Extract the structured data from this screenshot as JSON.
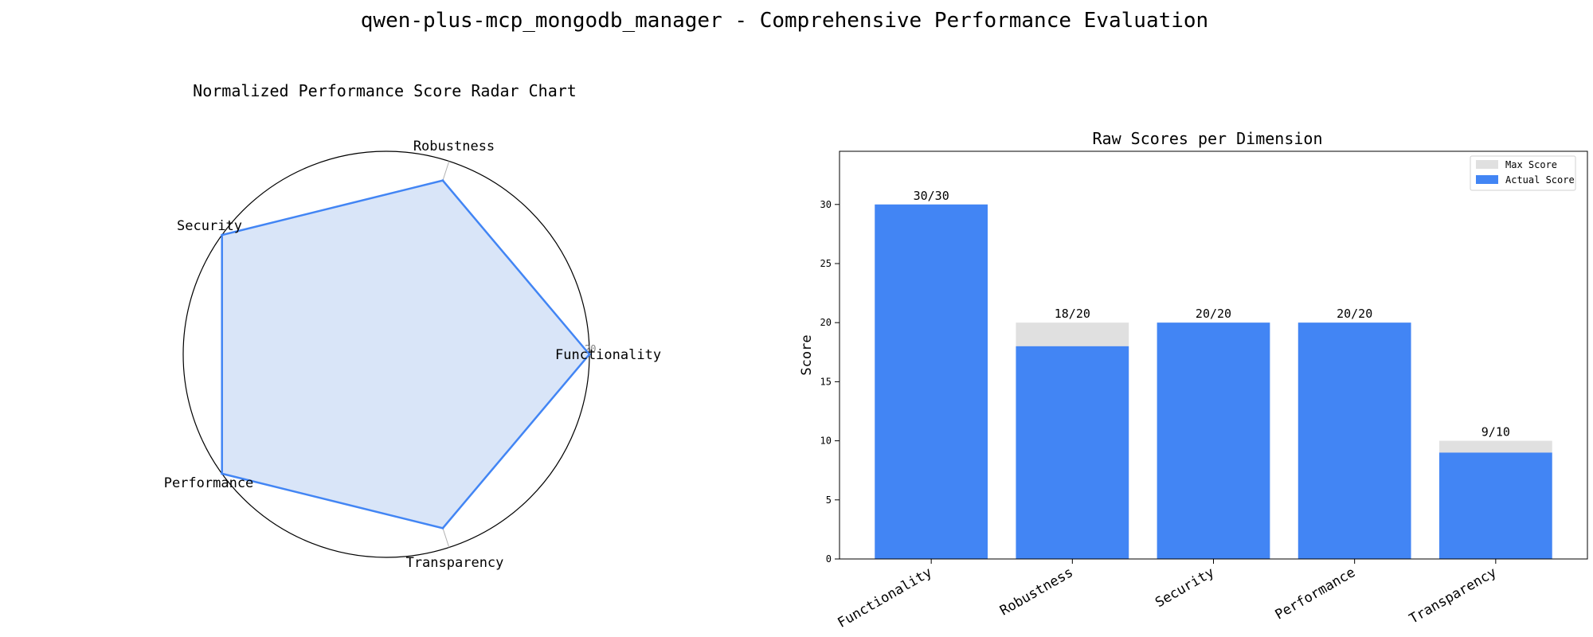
{
  "figure": {
    "suptitle": "qwen-plus-mcp_mongodb_manager - Comprehensive Performance Evaluation"
  },
  "chart_data": [
    {
      "type": "radar",
      "title": "Normalized Performance Score Radar Chart",
      "categories": [
        "Functionality",
        "Robustness",
        "Security",
        "Performance",
        "Transparency"
      ],
      "values": [
        20,
        18,
        20,
        20,
        18
      ],
      "rlim": [
        0,
        20
      ],
      "rticks": [
        5,
        10,
        15,
        20
      ],
      "grid": true,
      "line_color": "#4285f4",
      "fill_color": "#d9e5f8"
    },
    {
      "type": "bar",
      "title": "Raw Scores per Dimension",
      "categories": [
        "Functionality",
        "Robustness",
        "Security",
        "Performance",
        "Transparency"
      ],
      "series": [
        {
          "name": "Max Score",
          "values": [
            30,
            20,
            20,
            20,
            10
          ],
          "color": "#e0e0e0"
        },
        {
          "name": "Actual Score",
          "values": [
            30,
            18,
            20,
            20,
            9
          ],
          "color": "#4285f4"
        }
      ],
      "bar_labels": [
        "30/30",
        "18/20",
        "20/20",
        "20/20",
        "9/10"
      ],
      "ylabel": "Score",
      "ylim": [
        0,
        34.5
      ],
      "yticks": [
        0,
        5,
        10,
        15,
        20,
        25,
        30
      ],
      "legend": "top-right",
      "grid": false
    }
  ]
}
